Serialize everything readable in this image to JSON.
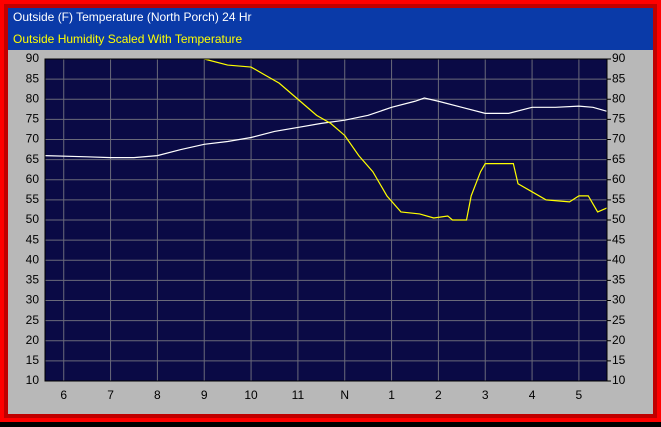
{
  "chart_data": {
    "type": "line",
    "title": "Outside (F) Temperature (North Porch) 24 Hr",
    "subtitle": "Outside Humidity Scaled With Temperature",
    "x": null,
    "xlim": [
      5.6,
      17.6
    ],
    "xticks": [
      6,
      7,
      8,
      9,
      10,
      11,
      {
        "value": 12,
        "label": "N"
      },
      {
        "value": 13,
        "label": "1"
      },
      {
        "value": 14,
        "label": "2"
      },
      {
        "value": 15,
        "label": "3"
      },
      {
        "value": 16,
        "label": "4"
      },
      {
        "value": 17,
        "label": "5"
      }
    ],
    "ylim": [
      10,
      90
    ],
    "yticks": [
      10,
      15,
      20,
      25,
      30,
      35,
      40,
      45,
      50,
      55,
      60,
      65,
      70,
      75,
      80,
      85,
      90
    ],
    "y2lim": [
      10,
      90
    ],
    "y2ticks": [
      10,
      15,
      20,
      25,
      30,
      35,
      40,
      45,
      50,
      55,
      60,
      65,
      70,
      75,
      80,
      85,
      90
    ],
    "grid": true,
    "series": [
      {
        "color": "#ffffff",
        "x": [
          5.6,
          6.5,
          7,
          7.5,
          8,
          8.5,
          9,
          9.5,
          10,
          10.5,
          11,
          11.5,
          12,
          12.5,
          13,
          13.5,
          13.7,
          14,
          14.5,
          15,
          15.5,
          16,
          16.5,
          17,
          17.3,
          17.6
        ],
        "values": [
          66,
          65.7,
          65.5,
          65.5,
          66,
          67.5,
          68.8,
          69.5,
          70.5,
          72,
          73,
          74,
          74.8,
          76,
          78,
          79.5,
          80.3,
          79.5,
          78,
          76.5,
          76.5,
          78,
          78,
          78.3,
          78,
          77
        ]
      },
      {
        "color": "#ffff00",
        "x": [
          9,
          9.5,
          10,
          10.3,
          10.6,
          11,
          11.4,
          11.7,
          12,
          12.3,
          12.6,
          12.9,
          13.2,
          13.6,
          13.9,
          14.2,
          14.3,
          14.6,
          14.7,
          14.9,
          15,
          15.6,
          15.7,
          16,
          16.3,
          16.8,
          17,
          17.2,
          17.4,
          17.6
        ],
        "values": [
          90,
          88.5,
          88,
          86,
          84,
          80,
          76,
          74,
          71,
          66,
          62,
          56,
          52,
          51.5,
          50.5,
          51,
          50,
          50,
          56,
          62,
          64,
          64,
          59,
          57,
          55,
          54.5,
          56,
          56,
          52,
          53
        ]
      }
    ]
  }
}
